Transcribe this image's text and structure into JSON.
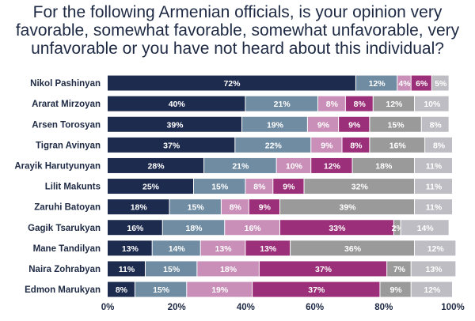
{
  "title": "For the following Armenian officials, is your opinion very favorable, somewhat favorable, somewhat unfavorable, very unfavorable or you have not heard about this individual?",
  "chart_data": {
    "type": "bar",
    "orientation": "horizontal",
    "stacked": true,
    "categories": [
      "Nikol Pashinyan",
      "Ararat Mirzoyan",
      "Arsen Torosyan",
      "Tigran Avinyan",
      "Arayik Harutyunyan",
      "Lilit Makunts",
      "Zaruhi Batoyan",
      "Gagik Tsarukyan",
      "Mane Tandilyan",
      "Naira Zohrabyan",
      "Edmon Marukyan"
    ],
    "series": [
      {
        "color": "#1d2b4f",
        "values": [
          72,
          40,
          39,
          37,
          28,
          25,
          18,
          16,
          13,
          11,
          8
        ]
      },
      {
        "color": "#6f8ca3",
        "values": [
          12,
          21,
          19,
          22,
          21,
          15,
          15,
          18,
          14,
          15,
          15
        ]
      },
      {
        "color": "#c98fb8",
        "values": [
          4,
          8,
          9,
          9,
          10,
          8,
          8,
          16,
          13,
          18,
          19
        ]
      },
      {
        "color": "#9b2f79",
        "values": [
          6,
          8,
          9,
          8,
          12,
          9,
          9,
          33,
          13,
          37,
          37
        ]
      },
      {
        "color": "#9a9a9a",
        "values": [
          null,
          12,
          15,
          16,
          18,
          32,
          39,
          2,
          36,
          7,
          9
        ]
      },
      {
        "color": "#bdbdc3",
        "values": [
          5,
          10,
          8,
          8,
          11,
          11,
          11,
          14,
          12,
          13,
          12
        ]
      }
    ],
    "xlim": [
      0,
      100
    ],
    "x_ticks": [
      "0%",
      "20%",
      "40%",
      "60%",
      "80%",
      "100%"
    ],
    "value_suffix": "%",
    "grid": false
  }
}
